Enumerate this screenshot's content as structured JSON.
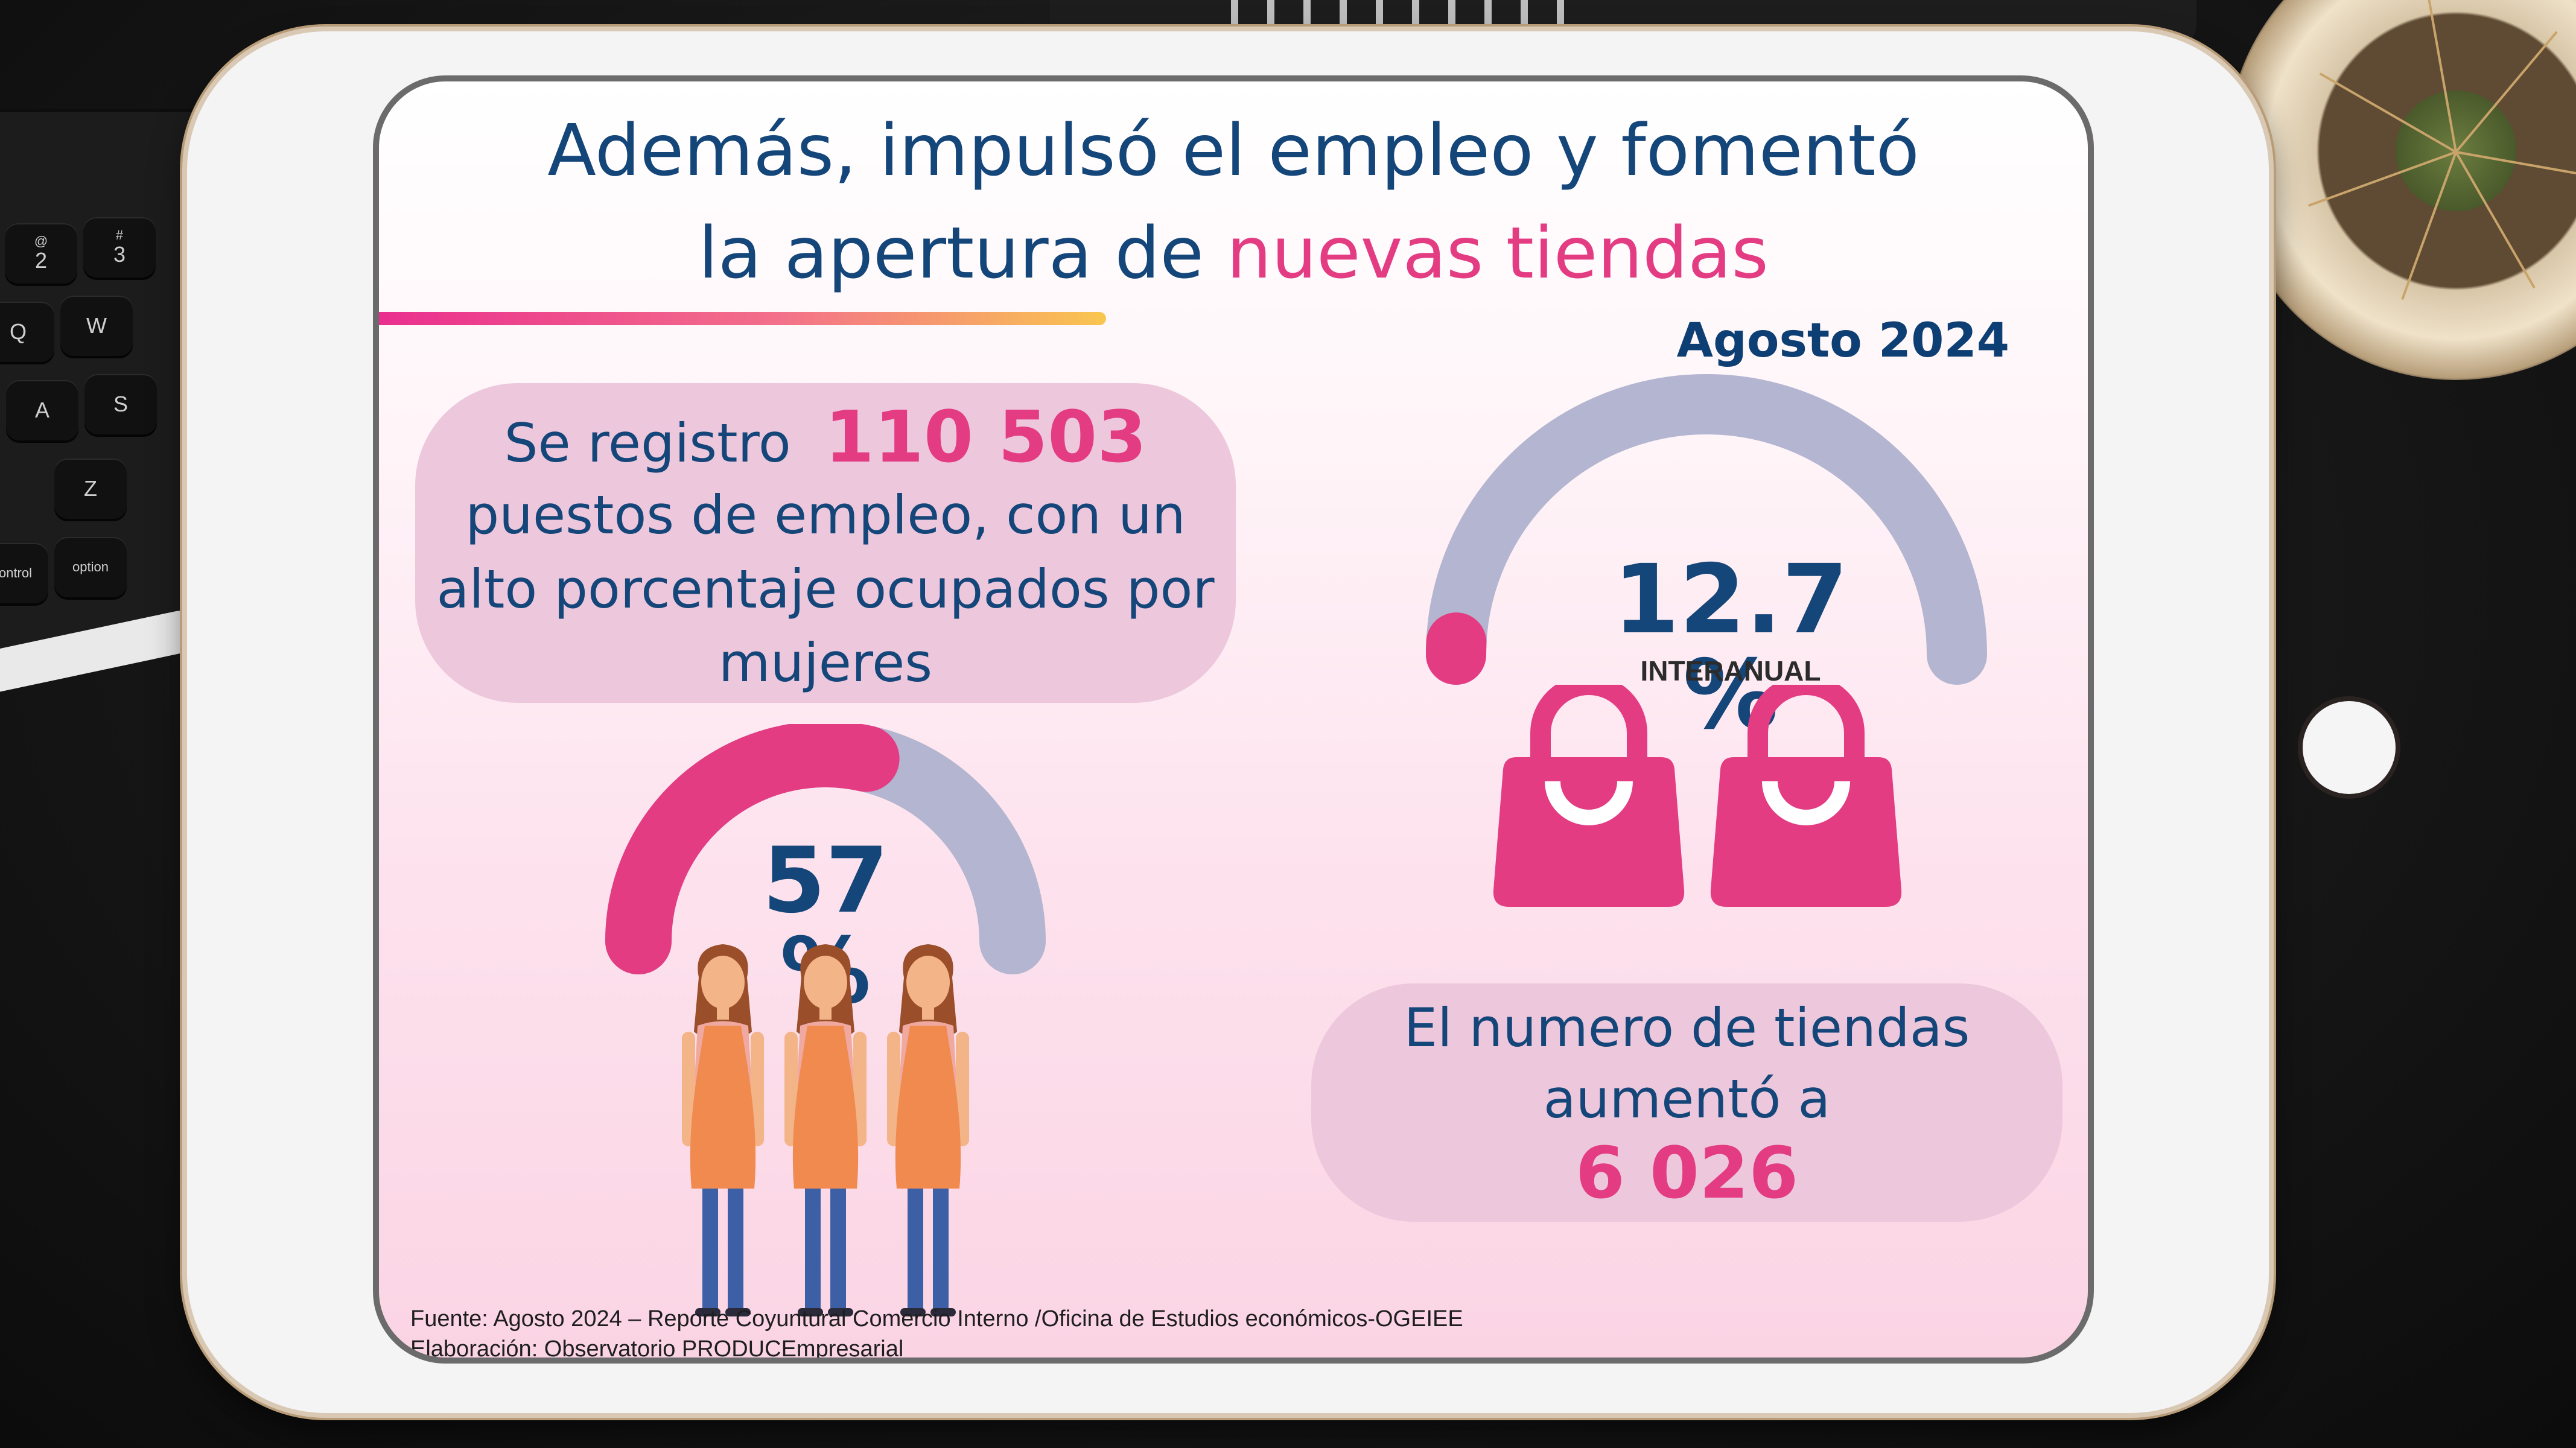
{
  "title": {
    "line1": "Además, impulsó el empleo y fomentó",
    "line2_prefix": "la apertura de ",
    "line2_highlight": "nuevas tiendas"
  },
  "period": "Agosto 2024",
  "employment": {
    "text_prefix": "Se registro",
    "count": "110 503",
    "text_lines": [
      "puestos de empleo, con un",
      "alto porcentaje ocupados por",
      "mujeres"
    ],
    "women_share_label": "57 %",
    "women_share_value": 0.57
  },
  "growth": {
    "label": "12.7 %",
    "caption": "INTERANUAL",
    "value": 12.7
  },
  "stores": {
    "text_lines": [
      "El numero de tiendas",
      "aumentó a"
    ],
    "count": "6 026"
  },
  "source": {
    "line1": "Fuente: Agosto 2024 – Reporte Coyuntural Comercio Interno /Oficina de Estudios económicos-OGEIEE",
    "line2": "Elaboración: Observatorio PRODUCEmpresarial"
  },
  "keyboard_keys": [
    {
      "top": "@",
      "main": "2"
    },
    {
      "top": "#",
      "main": "3"
    },
    {
      "top": "",
      "main": "Q"
    },
    {
      "top": "",
      "main": "W"
    },
    {
      "top": "",
      "main": "A"
    },
    {
      "top": "",
      "main": "S"
    },
    {
      "top": "",
      "main": "Z"
    },
    {
      "top": "",
      "main": "control"
    },
    {
      "top": "",
      "main": "option"
    }
  ],
  "colors": {
    "navy": "#15467a",
    "pink": "#e33c83",
    "lavender": "#b3b5d1",
    "bubble": "#edc7db",
    "apron": "#f08a4f"
  }
}
